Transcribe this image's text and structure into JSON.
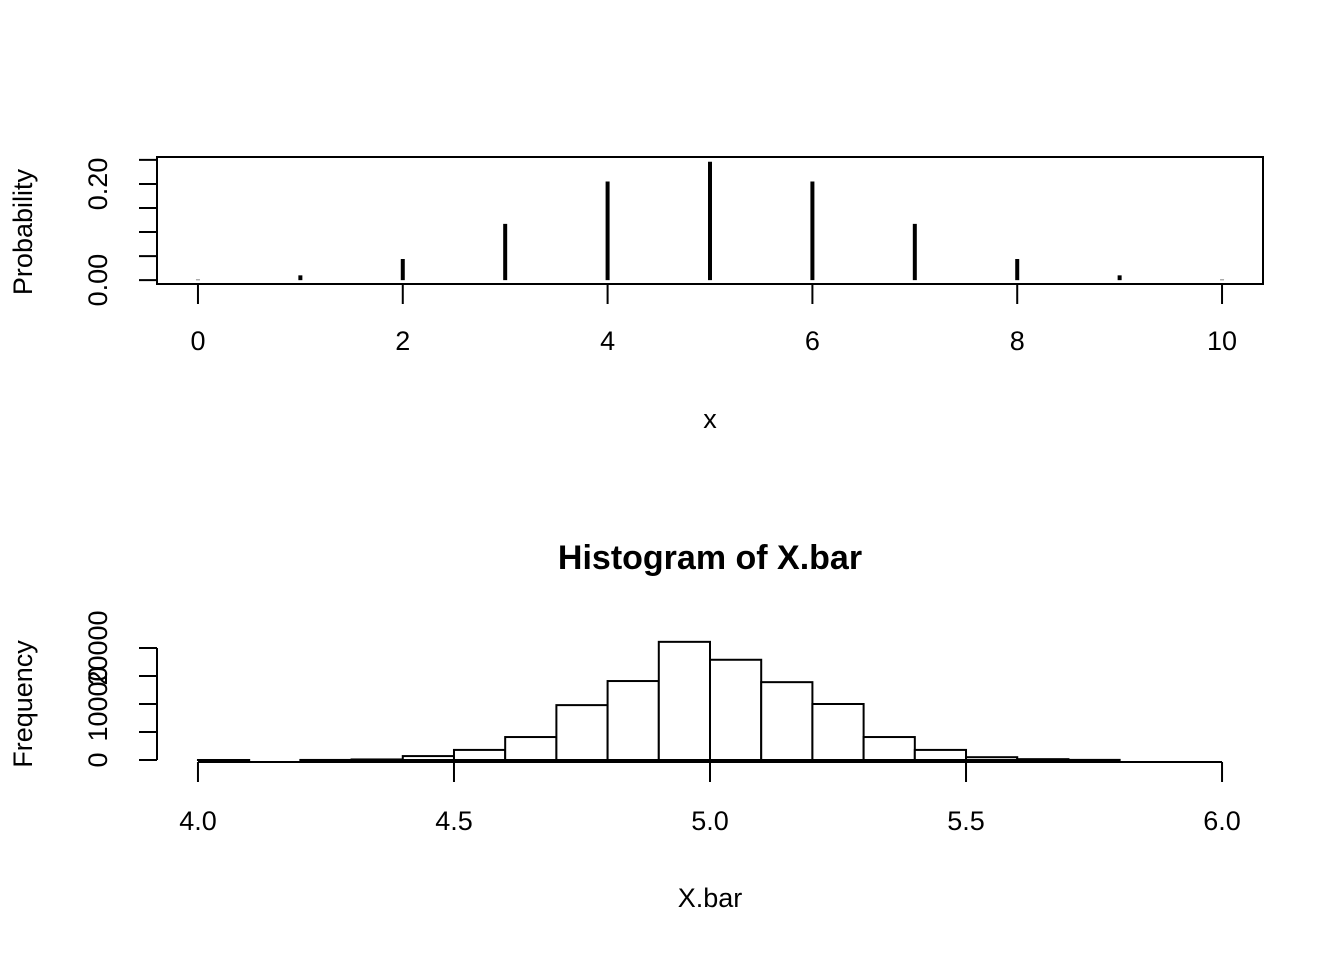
{
  "chart_data": [
    {
      "type": "spike",
      "xlabel": "x",
      "ylabel": "Probability",
      "x": [
        0,
        1,
        2,
        3,
        4,
        5,
        6,
        7,
        8,
        9,
        10
      ],
      "values": [
        0.001,
        0.01,
        0.044,
        0.117,
        0.205,
        0.246,
        0.205,
        0.117,
        0.044,
        0.01,
        0.001
      ],
      "color": "#000000",
      "box": true,
      "xlim": [
        -0.4,
        10.4
      ],
      "xticks": [
        0,
        2,
        4,
        6,
        8,
        10
      ],
      "ylim": [
        -0.008,
        0.256
      ],
      "yticks": [
        {
          "value": 0,
          "label": "0.00"
        },
        {
          "value": 0.2,
          "label": "0.20"
        }
      ],
      "yticks_unlabeled": [
        0.05,
        0.1,
        0.15,
        0.25
      ]
    },
    {
      "type": "histogram",
      "title": "Histogram of X.bar",
      "xlabel": "X.bar",
      "ylabel": "Frequency",
      "bins": [
        4.0,
        4.1,
        4.2,
        4.3,
        4.4,
        4.5,
        4.6,
        4.7,
        4.8,
        4.9,
        5.0,
        5.1,
        5.2,
        5.3,
        5.4,
        5.5,
        5.6,
        5.7,
        5.8,
        5.9,
        6.0
      ],
      "values": [
        1,
        0,
        10,
        100,
        700,
        1800,
        4100,
        9800,
        14100,
        21100,
        17900,
        13900,
        10000,
        4100,
        1800,
        500,
        150,
        20,
        0,
        0
      ],
      "color": "#ffffff",
      "edgecolor": "#000000",
      "box": false,
      "xlim": [
        3.92,
        6.08
      ],
      "xticks": [
        {
          "value": 4,
          "label": "4.0"
        },
        4.5,
        {
          "value": 5,
          "label": "5.0"
        },
        5.5,
        {
          "value": 6,
          "label": "6.0"
        }
      ],
      "ylim": [
        0,
        20000
      ],
      "yticks": [
        0,
        10000,
        20000
      ],
      "yticks_unlabeled": [
        5000,
        15000
      ]
    }
  ]
}
